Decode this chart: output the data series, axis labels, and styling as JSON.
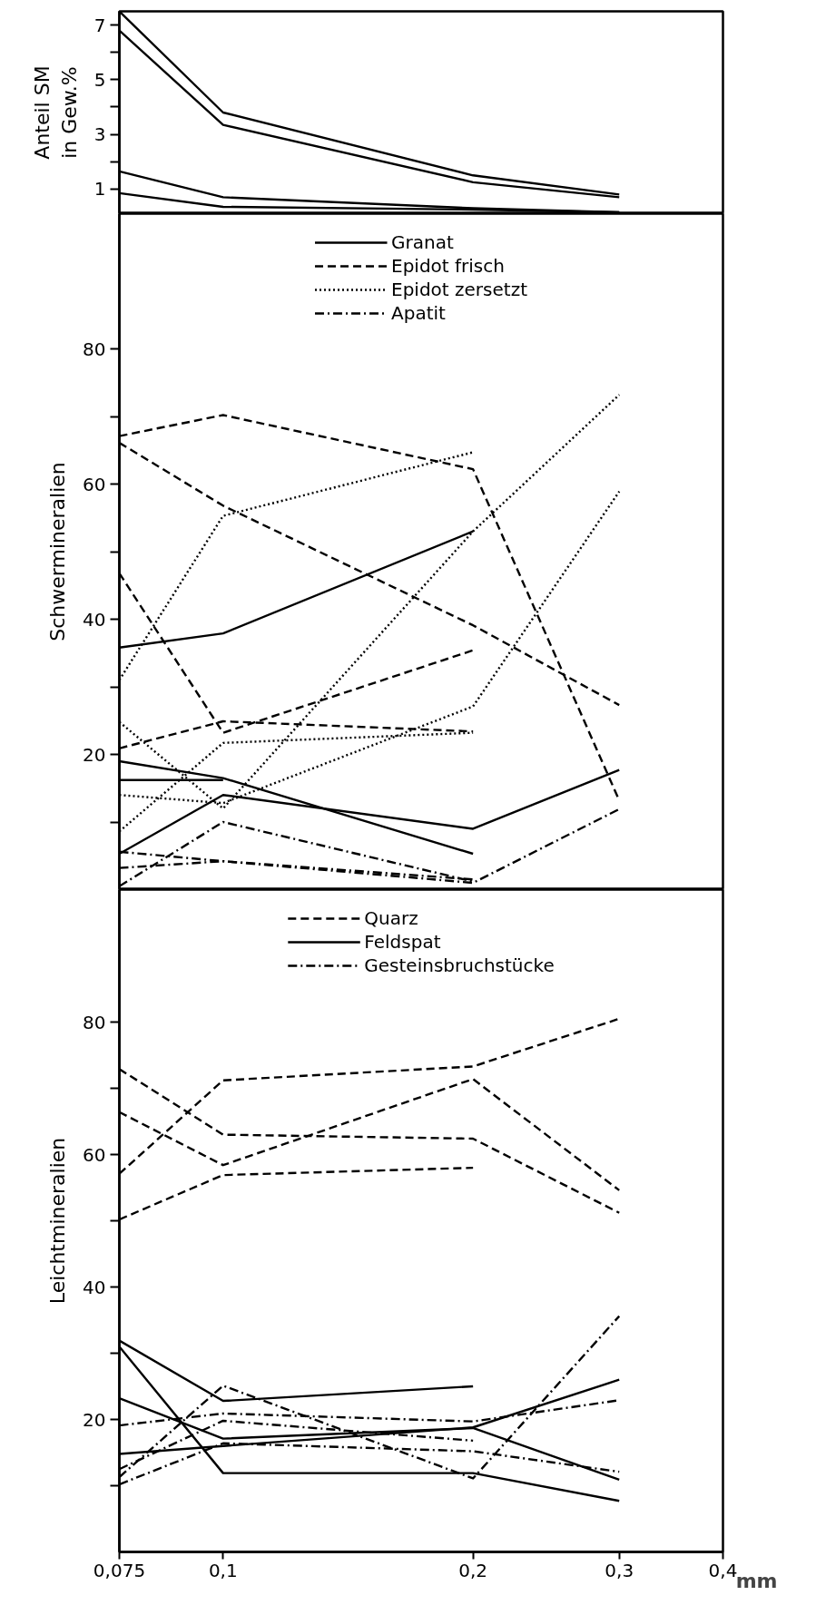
{
  "chart_data": [
    {
      "type": "line",
      "ylabel": "Anteil SM\nin Gew.%",
      "x": [
        0.075,
        0.1,
        0.2,
        0.3
      ],
      "xlim": [
        0.075,
        0.4
      ],
      "log": "x",
      "ylim": [
        0.1,
        7.5
      ],
      "yticks": [
        1,
        {
          "value": 2,
          "label": null
        },
        3,
        {
          "value": 4,
          "label": null
        },
        5,
        {
          "value": 6,
          "label": null
        },
        7
      ],
      "tick_labels": "y",
      "grid": false,
      "legend": false,
      "series": [
        {
          "color": "#000000",
          "line_style": "solid",
          "values": [
            7.5,
            3.8,
            1.5,
            0.8
          ]
        },
        {
          "color": "#000000",
          "line_style": "solid",
          "values": [
            6.8,
            3.35,
            1.25,
            0.7
          ]
        },
        {
          "color": "#000000",
          "line_style": "solid",
          "values": [
            1.65,
            0.7,
            0.3,
            0.15
          ]
        },
        {
          "color": "#000000",
          "line_style": "solid",
          "values": [
            0.85,
            0.35,
            0.25,
            0.15
          ]
        }
      ]
    },
    {
      "type": "line",
      "ylabel": "Schwermineralien",
      "x": [
        0.075,
        0.1,
        0.2,
        0.3
      ],
      "xlim": [
        0.075,
        0.4
      ],
      "log": "x",
      "ylim": [
        0,
        100
      ],
      "yticks": [
        {
          "value": 10,
          "label": null
        },
        20,
        {
          "value": 30,
          "label": null
        },
        40,
        {
          "value": 50,
          "label": null
        },
        60,
        {
          "value": 70,
          "label": null
        },
        80
      ],
      "tick_labels": "y",
      "grid": false,
      "legend": "top",
      "series": [
        {
          "name": "Granat",
          "color": "#000000",
          "line_style": "solid",
          "values": [
            35.8,
            37.9,
            53.0,
            null
          ]
        },
        {
          "color": "#000000",
          "line_style": "solid",
          "values": [
            19.0,
            16.5,
            5.3,
            null
          ]
        },
        {
          "color": "#000000",
          "line_style": "solid",
          "values": [
            5.3,
            14.0,
            9.0,
            17.7
          ]
        },
        {
          "color": "#000000",
          "line_style": "solid",
          "values": [
            16.2,
            16.2,
            null,
            null
          ]
        },
        {
          "name": "Epidot frisch",
          "color": "#000000",
          "line_style": "dashed",
          "values": [
            67.1,
            70.2,
            62.2,
            13.2
          ]
        },
        {
          "color": "#000000",
          "line_style": "dashed",
          "values": [
            66.1,
            56.8,
            39.1,
            27.3
          ]
        },
        {
          "color": "#000000",
          "line_style": "dashed",
          "values": [
            46.8,
            23.2,
            35.4,
            null
          ]
        },
        {
          "color": "#000000",
          "line_style": "dashed",
          "values": [
            20.9,
            24.9,
            23.4,
            null
          ]
        },
        {
          "name": "Epidot zersetzt",
          "color": "#000000",
          "line_style": "dotted",
          "values": [
            31.0,
            55.3,
            64.7,
            null
          ]
        },
        {
          "color": "#000000",
          "line_style": "dotted",
          "values": [
            8.6,
            21.7,
            23.2,
            null
          ]
        },
        {
          "color": "#000000",
          "line_style": "dotted",
          "values": [
            24.8,
            12.0,
            53.0,
            73.2
          ]
        },
        {
          "color": "#000000",
          "line_style": "dotted",
          "values": [
            14.0,
            12.8,
            27.1,
            58.9
          ]
        },
        {
          "name": "Apatit",
          "color": "#000000",
          "line_style": "dashdot",
          "values": [
            0.5,
            10.0,
            1.2,
            null
          ]
        },
        {
          "color": "#000000",
          "line_style": "dashdot",
          "values": [
            5.6,
            4.2,
            1.0,
            11.9
          ]
        },
        {
          "color": "#000000",
          "line_style": "dashdot",
          "values": [
            3.2,
            4.2,
            1.5,
            null
          ]
        }
      ]
    },
    {
      "type": "line",
      "ylabel": "Leichtmineralien",
      "xlabel": "mm",
      "x": [
        0.075,
        0.1,
        0.2,
        0.3
      ],
      "xlim": [
        0.075,
        0.4
      ],
      "xticks": [
        {
          "value": 0.075,
          "label": "0,075"
        },
        {
          "value": 0.1,
          "label": "0,1"
        },
        {
          "value": 0.2,
          "label": "0,2"
        },
        {
          "value": 0.3,
          "label": "0,3"
        },
        {
          "value": 0.4,
          "label": "0,4"
        }
      ],
      "log": "x",
      "ylim": [
        0,
        100
      ],
      "yticks": [
        {
          "value": 10,
          "label": null
        },
        20,
        {
          "value": 30,
          "label": null
        },
        40,
        {
          "value": 50,
          "label": null
        },
        60,
        {
          "value": 70,
          "label": null
        },
        80
      ],
      "grid": false,
      "legend": "top",
      "series": [
        {
          "name": "Quarz",
          "color": "#000000",
          "line_style": "dashed",
          "values": [
            72.9,
            63.0,
            62.4,
            51.2
          ]
        },
        {
          "color": "#000000",
          "line_style": "dashed",
          "values": [
            66.4,
            58.4,
            71.4,
            54.6
          ]
        },
        {
          "color": "#000000",
          "line_style": "dashed",
          "values": [
            57.1,
            71.2,
            73.3,
            80.5
          ]
        },
        {
          "color": "#000000",
          "line_style": "dashed",
          "values": [
            50.2,
            56.9,
            58.0,
            null
          ]
        },
        {
          "name": "Feldspat",
          "color": "#000000",
          "line_style": "solid",
          "values": [
            31.9,
            22.8,
            25.0,
            null
          ]
        },
        {
          "color": "#000000",
          "line_style": "solid",
          "values": [
            31.0,
            11.9,
            11.9,
            7.7
          ]
        },
        {
          "color": "#000000",
          "line_style": "solid",
          "values": [
            23.2,
            17.1,
            18.7,
            10.9
          ]
        },
        {
          "color": "#000000",
          "line_style": "solid",
          "values": [
            14.8,
            16.0,
            18.8,
            26.0
          ]
        },
        {
          "name": "Gesteinsbruchstücke",
          "color": "#000000",
          "line_style": "dashdot",
          "values": [
            19.1,
            20.9,
            19.7,
            22.9
          ]
        },
        {
          "color": "#000000",
          "line_style": "dashdot",
          "values": [
            11.3,
            25.1,
            11.1,
            35.6
          ]
        },
        {
          "color": "#000000",
          "line_style": "dashdot",
          "values": [
            10.2,
            16.4,
            15.2,
            12.1
          ]
        },
        {
          "color": "#000000",
          "line_style": "dashdot",
          "values": [
            12.5,
            19.8,
            16.8,
            null
          ]
        }
      ]
    }
  ]
}
